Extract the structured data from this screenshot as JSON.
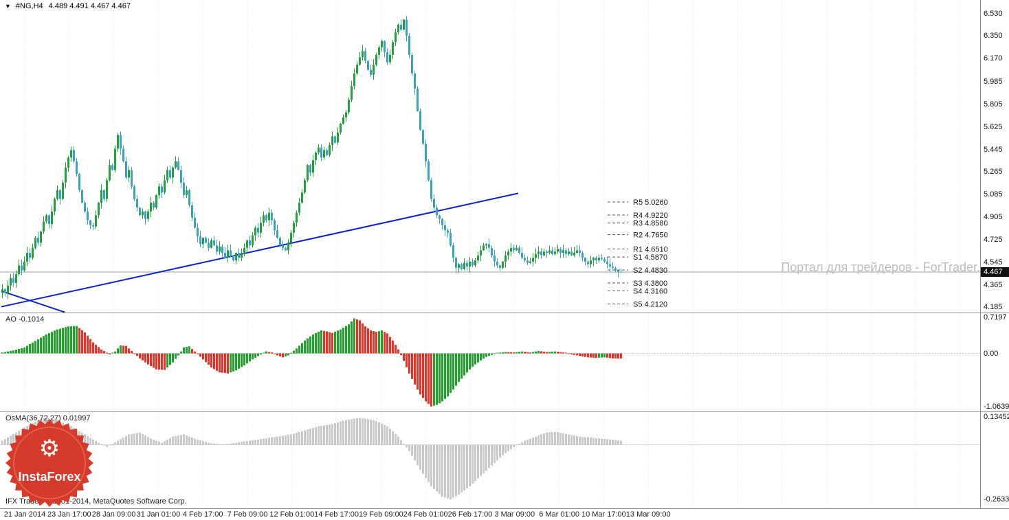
{
  "window": {
    "dropdown_icon": "▼",
    "title_symbol": "#NG,H4",
    "title_quotes": "4.489 4.491 4.467 4.467"
  },
  "watermark": "Портал для трейдеров - ForTrader.ru",
  "footer": {
    "copyright": "IFX Trader, © 2001-2014, MetaQuotes Software Corp."
  },
  "logo": {
    "text": "InstaForex",
    "gear_icon": "⚙"
  },
  "indicators": {
    "ao": {
      "label": "AO -0.1014",
      "scale_labels": [
        "0.7197",
        "0.00",
        "-1.0639"
      ]
    },
    "osma": {
      "label": "OsMA(36,72,27) 0.01997",
      "scale_labels": [
        "0.13452",
        "-0.2633"
      ]
    }
  },
  "price_axis": {
    "labels": [
      "6.530",
      "6.350",
      "6.170",
      "5.985",
      "5.805",
      "5.625",
      "5.445",
      "5.265",
      "5.085",
      "4.905",
      "4.725",
      "4.545",
      "4.365",
      "4.185"
    ],
    "current": "4.467",
    "current_value": 4.467
  },
  "time_axis": {
    "labels": [
      "21 Jan 2014",
      "23 Jan 17:00",
      "28 Jan 09:00",
      "31 Jan 01:00",
      "4 Feb 17:00",
      "7 Feb 09:00",
      "12 Feb 01:00",
      "14 Feb 17:00",
      "19 Feb 09:00",
      "24 Feb 01:00",
      "26 Feb 17:00",
      "3 Mar 09:00",
      "6 Mar 01:00",
      "10 Mar 17:00",
      "13 Mar 09:00"
    ]
  },
  "colors": {
    "candle_up": "#22a03a",
    "candle_down": "#3aa0c4",
    "ao_up": "#1fa32c",
    "ao_down": "#ef2e24",
    "osma": "#c9c9c9",
    "trendline": "#0b23c9",
    "grid": "#dcdcdc",
    "bid_line": "#9e9e9e",
    "tag_bg": "#111111"
  },
  "chart_data": {
    "type": "candlestick",
    "symbol": "#NG",
    "timeframe": "H4",
    "quote": {
      "open": 4.489,
      "high": 4.491,
      "low": 4.467,
      "close": 4.467
    },
    "price_range_visible": [
      4.144,
      6.637
    ],
    "closes": [
      4.33,
      4.3,
      4.36,
      4.42,
      4.38,
      4.45,
      4.52,
      4.48,
      4.55,
      4.62,
      4.58,
      4.66,
      4.74,
      4.7,
      4.79,
      4.87,
      4.92,
      4.85,
      4.95,
      5.05,
      5.12,
      5.05,
      5.18,
      5.3,
      5.38,
      5.44,
      5.35,
      5.25,
      5.12,
      5.02,
      4.95,
      4.88,
      4.84,
      4.83,
      4.92,
      5.02,
      5.12,
      5.05,
      5.2,
      5.32,
      5.28,
      5.45,
      5.56,
      5.45,
      5.35,
      5.22,
      5.28,
      5.15,
      5.05,
      4.98,
      4.92,
      4.95,
      4.89,
      4.95,
      5.02,
      4.98,
      5.08,
      5.15,
      5.1,
      5.2,
      5.28,
      5.22,
      5.3,
      5.35,
      5.28,
      5.18,
      5.08,
      5.12,
      5.0,
      4.9,
      4.82,
      4.75,
      4.69,
      4.74,
      4.7,
      4.66,
      4.72,
      4.68,
      4.63,
      4.67,
      4.62,
      4.58,
      4.64,
      4.6,
      4.56,
      4.62,
      4.58,
      4.61,
      4.66,
      4.72,
      4.68,
      4.76,
      4.82,
      4.78,
      4.86,
      4.92,
      4.88,
      4.94,
      4.88,
      4.8,
      4.74,
      4.68,
      4.66,
      4.64,
      4.7,
      4.78,
      4.86,
      4.94,
      5.02,
      5.1,
      5.2,
      5.32,
      5.26,
      5.36,
      5.42,
      5.46,
      5.38,
      5.44,
      5.4,
      5.48,
      5.55,
      5.5,
      5.58,
      5.65,
      5.7,
      5.74,
      5.84,
      5.95,
      6.05,
      6.12,
      6.18,
      6.23,
      6.15,
      6.08,
      6.04,
      6.12,
      6.2,
      6.26,
      6.31,
      6.22,
      6.14,
      6.2,
      6.3,
      6.38,
      6.44,
      6.4,
      6.48,
      6.35,
      6.2,
      6.05,
      5.93,
      5.75,
      5.6,
      5.49,
      5.35,
      5.2,
      5.05,
      4.98,
      4.92,
      4.89,
      4.84,
      4.8,
      4.78,
      4.68,
      4.58,
      4.5,
      4.53,
      4.49,
      4.54,
      4.51,
      4.55,
      4.52,
      4.56,
      4.6,
      4.64,
      4.68,
      4.69,
      4.66,
      4.6,
      4.55,
      4.52,
      4.5,
      4.55,
      4.6,
      4.63,
      4.66,
      4.64,
      4.66,
      4.62,
      4.58,
      4.56,
      4.54,
      4.55,
      4.58,
      4.61,
      4.63,
      4.6,
      4.63,
      4.62,
      4.64,
      4.61,
      4.63,
      4.65,
      4.62,
      4.64,
      4.61,
      4.63,
      4.6,
      4.62,
      4.64,
      4.62,
      4.58,
      4.55,
      4.53,
      4.56,
      4.58,
      4.56,
      4.58,
      4.57,
      4.55,
      4.53,
      4.51,
      4.5,
      4.48,
      4.47,
      4.467
    ],
    "pivot_levels": [
      {
        "name": "R5",
        "value": 5.026,
        "label": "5.0260"
      },
      {
        "name": "R4",
        "value": 4.922,
        "label": "4.9220"
      },
      {
        "name": "R3",
        "value": 4.858,
        "label": "4.8580"
      },
      {
        "name": "R2",
        "value": 4.765,
        "label": "4.7650"
      },
      {
        "name": "R1",
        "value": 4.651,
        "label": "4.6510"
      },
      {
        "name": "S1",
        "value": 4.587,
        "label": "4.5870"
      },
      {
        "name": "S2",
        "value": 4.483,
        "label": "4.4830"
      },
      {
        "name": "S3",
        "value": 4.38,
        "label": "4.3800"
      },
      {
        "name": "S4",
        "value": 4.316,
        "label": "4.3160"
      },
      {
        "name": "S5",
        "value": 4.212,
        "label": "4.2120"
      }
    ],
    "trendlines": [
      {
        "from_bar": 0,
        "from_price": 4.19,
        "to_bar": 188,
        "to_price": 5.095
      },
      {
        "from_bar": 0,
        "from_price": 4.315,
        "to_bar": 23,
        "to_price": 4.147
      }
    ],
    "ao": {
      "name": "Awesome Oscillator",
      "current": -0.1014,
      "range": [
        -1.0639,
        0.7197
      ],
      "anchors": [
        [
          0,
          0.02
        ],
        [
          4,
          0.06
        ],
        [
          8,
          0.12
        ],
        [
          12,
          0.25
        ],
        [
          16,
          0.38
        ],
        [
          20,
          0.48
        ],
        [
          24,
          0.54
        ],
        [
          27,
          0.55
        ],
        [
          30,
          0.42
        ],
        [
          33,
          0.22
        ],
        [
          36,
          0.08
        ],
        [
          39,
          -0.02
        ],
        [
          41,
          0.04
        ],
        [
          43,
          0.16
        ],
        [
          45,
          0.15
        ],
        [
          47,
          0.05
        ],
        [
          50,
          -0.1
        ],
        [
          53,
          -0.22
        ],
        [
          56,
          -0.32
        ],
        [
          59,
          -0.33
        ],
        [
          62,
          -0.18
        ],
        [
          64,
          -0.04
        ],
        [
          66,
          0.12
        ],
        [
          68,
          0.14
        ],
        [
          70,
          0.04
        ],
        [
          73,
          -0.12
        ],
        [
          76,
          -0.28
        ],
        [
          79,
          -0.38
        ],
        [
          82,
          -0.4
        ],
        [
          85,
          -0.34
        ],
        [
          88,
          -0.24
        ],
        [
          91,
          -0.12
        ],
        [
          94,
          -0.02
        ],
        [
          96,
          0.04
        ],
        [
          98,
          0.02
        ],
        [
          100,
          -0.04
        ],
        [
          102,
          -0.08
        ],
        [
          104,
          -0.04
        ],
        [
          107,
          0.1
        ],
        [
          110,
          0.26
        ],
        [
          113,
          0.38
        ],
        [
          116,
          0.46
        ],
        [
          118,
          0.44
        ],
        [
          120,
          0.41
        ],
        [
          123,
          0.48
        ],
        [
          126,
          0.58
        ],
        [
          128,
          0.7
        ],
        [
          130,
          0.66
        ],
        [
          132,
          0.54
        ],
        [
          134,
          0.46
        ],
        [
          136,
          0.43
        ],
        [
          138,
          0.46
        ],
        [
          140,
          0.4
        ],
        [
          142,
          0.26
        ],
        [
          144,
          0.08
        ],
        [
          146,
          -0.15
        ],
        [
          148,
          -0.4
        ],
        [
          150,
          -0.62
        ],
        [
          152,
          -0.82
        ],
        [
          154,
          -0.96
        ],
        [
          156,
          -1.06
        ],
        [
          158,
          -1.03
        ],
        [
          160,
          -0.96
        ],
        [
          162,
          -0.86
        ],
        [
          164,
          -0.72
        ],
        [
          166,
          -0.57
        ],
        [
          168,
          -0.44
        ],
        [
          170,
          -0.32
        ],
        [
          172,
          -0.22
        ],
        [
          174,
          -0.14
        ],
        [
          176,
          -0.07
        ],
        [
          178,
          -0.03
        ],
        [
          180,
          0.01
        ],
        [
          183,
          0.03
        ],
        [
          186,
          0.02
        ],
        [
          189,
          0.04
        ],
        [
          192,
          0.02
        ],
        [
          195,
          0.05
        ],
        [
          198,
          0.03
        ],
        [
          201,
          0.04
        ],
        [
          204,
          0.02
        ],
        [
          206,
          -0.01
        ],
        [
          208,
          -0.03
        ],
        [
          210,
          -0.05
        ],
        [
          213,
          -0.08
        ],
        [
          216,
          -0.09
        ],
        [
          219,
          -0.08
        ],
        [
          222,
          -0.1
        ],
        [
          225,
          -0.1014
        ]
      ]
    },
    "osma": {
      "name": "OsMA",
      "params": [
        36,
        72,
        27
      ],
      "current": 0.01997,
      "range": [
        -0.2633,
        0.13452
      ],
      "anchors": [
        [
          0,
          0.02
        ],
        [
          5,
          0.06
        ],
        [
          10,
          0.1
        ],
        [
          15,
          0.13
        ],
        [
          20,
          0.12
        ],
        [
          25,
          0.09
        ],
        [
          30,
          0.05
        ],
        [
          35,
          0.01
        ],
        [
          38,
          -0.01
        ],
        [
          42,
          0.02
        ],
        [
          46,
          0.05
        ],
        [
          50,
          0.06
        ],
        [
          54,
          0.03
        ],
        [
          58,
          0.01
        ],
        [
          62,
          0.04
        ],
        [
          66,
          0.05
        ],
        [
          70,
          0.03
        ],
        [
          75,
          0.01
        ],
        [
          80,
          0.0
        ],
        [
          85,
          0.01
        ],
        [
          90,
          0.02
        ],
        [
          95,
          0.03
        ],
        [
          100,
          0.04
        ],
        [
          105,
          0.05
        ],
        [
          110,
          0.07
        ],
        [
          115,
          0.09
        ],
        [
          120,
          0.1
        ],
        [
          125,
          0.12
        ],
        [
          130,
          0.13
        ],
        [
          135,
          0.12
        ],
        [
          140,
          0.09
        ],
        [
          144,
          0.04
        ],
        [
          148,
          -0.03
        ],
        [
          152,
          -0.12
        ],
        [
          156,
          -0.2
        ],
        [
          160,
          -0.25
        ],
        [
          163,
          -0.263
        ],
        [
          166,
          -0.24
        ],
        [
          170,
          -0.2
        ],
        [
          174,
          -0.15
        ],
        [
          178,
          -0.1
        ],
        [
          182,
          -0.05
        ],
        [
          186,
          -0.01
        ],
        [
          190,
          0.02
        ],
        [
          194,
          0.04
        ],
        [
          198,
          0.06
        ],
        [
          202,
          0.062
        ],
        [
          206,
          0.05
        ],
        [
          210,
          0.04
        ],
        [
          214,
          0.035
        ],
        [
          218,
          0.03
        ],
        [
          222,
          0.025
        ],
        [
          225,
          0.02
        ]
      ]
    }
  }
}
